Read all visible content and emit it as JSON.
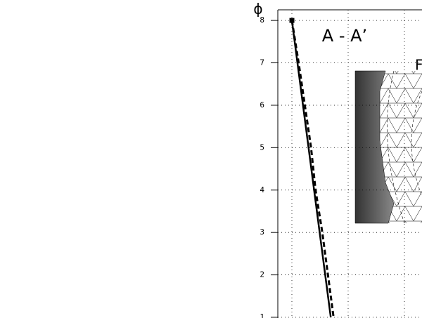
{
  "chart_data": {
    "type": "line",
    "ylabel": "ϕ",
    "annotations": [
      "A - A’",
      "F"
    ],
    "ylim": [
      1,
      8.25
    ],
    "yticks": [
      1,
      2,
      3,
      4,
      5,
      6,
      7,
      8
    ],
    "xlim": [
      -0.25,
      2.31
    ],
    "grid": true,
    "series": [
      {
        "color": "#000000",
        "style": "solid",
        "x": [
          0,
          0.69
        ],
        "values": [
          8,
          1
        ]
      },
      {
        "color": "#000000",
        "style": "dashed",
        "x": [
          0,
          0.12,
          0.23,
          0.34,
          0.42,
          0.54,
          0.64,
          0.74
        ],
        "values": [
          8,
          7,
          6,
          5,
          4,
          3,
          2,
          1
        ]
      }
    ]
  }
}
